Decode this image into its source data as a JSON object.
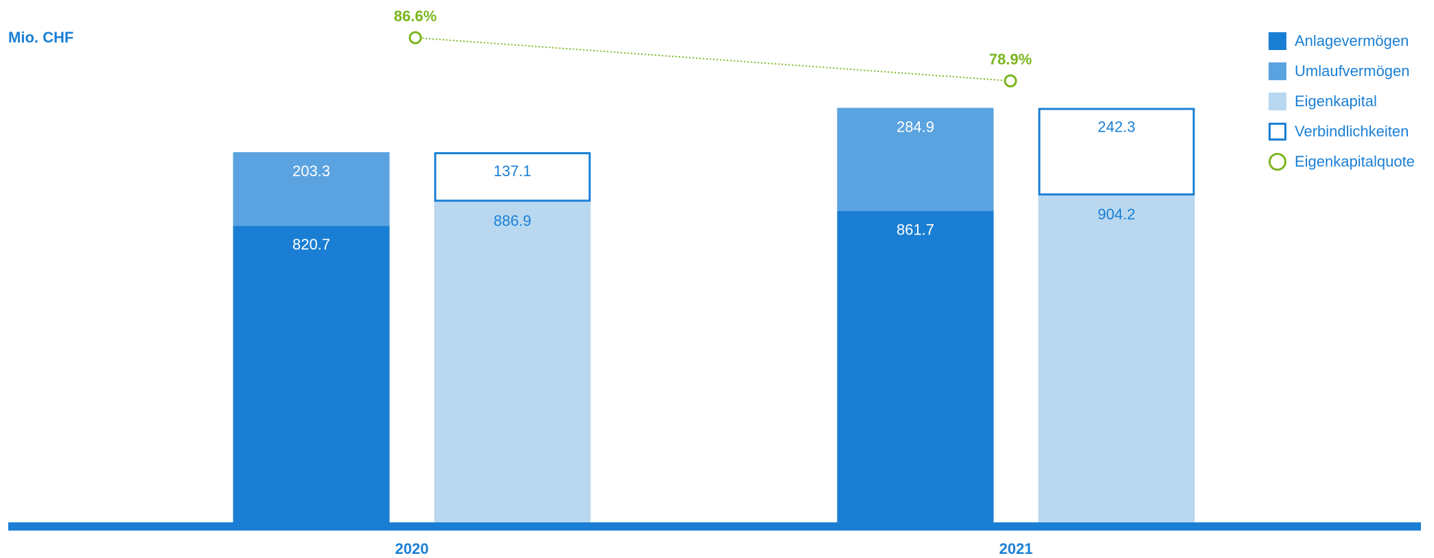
{
  "chart_data": {
    "type": "bar",
    "unit_label": "Mio. CHF",
    "categories": [
      "2020",
      "2021"
    ],
    "series": [
      {
        "name": "Anlagevermögen",
        "values": [
          820.7,
          861.7
        ],
        "color": "#1a7fd4",
        "stack": "aktiven",
        "labels": [
          "820.7",
          "861.7"
        ]
      },
      {
        "name": "Umlaufvermögen",
        "values": [
          203.3,
          284.9
        ],
        "color": "#5ba3e0",
        "stack": "aktiven",
        "labels": [
          "203.3",
          "284.9"
        ]
      },
      {
        "name": "Eigenkapital",
        "values": [
          886.9,
          904.2
        ],
        "color": "#b9d8f0",
        "stack": "passiven",
        "labels": [
          "886.9",
          "904.2"
        ]
      },
      {
        "name": "Verbindlichkeiten",
        "values": [
          137.1,
          242.3
        ],
        "color": "#1a7fd4",
        "stack": "passiven",
        "style": "outline",
        "labels": [
          "137.1",
          "242.3"
        ]
      }
    ],
    "line_series": {
      "name": "Eigenkapitalquote",
      "values": [
        86.6,
        78.9
      ],
      "labels": [
        "86.6%",
        "78.9%"
      ],
      "color": "#7ab51d",
      "style": "dotted"
    },
    "ylim": [
      0,
      1200
    ],
    "legend_position": "top-right",
    "grid": false
  },
  "legend": [
    {
      "label": "Anlagevermögen",
      "color": "#1a7fd4",
      "shape": "square-filled",
      "icon": "filled-square-icon"
    },
    {
      "label": "Umlaufvermögen",
      "color": "#5ba3e0",
      "shape": "square-filled",
      "icon": "filled-square-icon"
    },
    {
      "label": "Eigenkapital",
      "color": "#b9d8f0",
      "shape": "square-filled",
      "icon": "filled-square-icon"
    },
    {
      "label": "Verbindlichkeiten",
      "color": "#1a7fd4",
      "shape": "square-outline",
      "icon": "outline-square-icon"
    },
    {
      "label": "Eigenkapitalquote",
      "color": "#7ab51d",
      "shape": "circle-outline",
      "icon": "circle-icon"
    }
  ],
  "colors": {
    "axis": "#1a7fd4",
    "text_dark": "#ffffff",
    "text_light": "#1a7fd4"
  }
}
